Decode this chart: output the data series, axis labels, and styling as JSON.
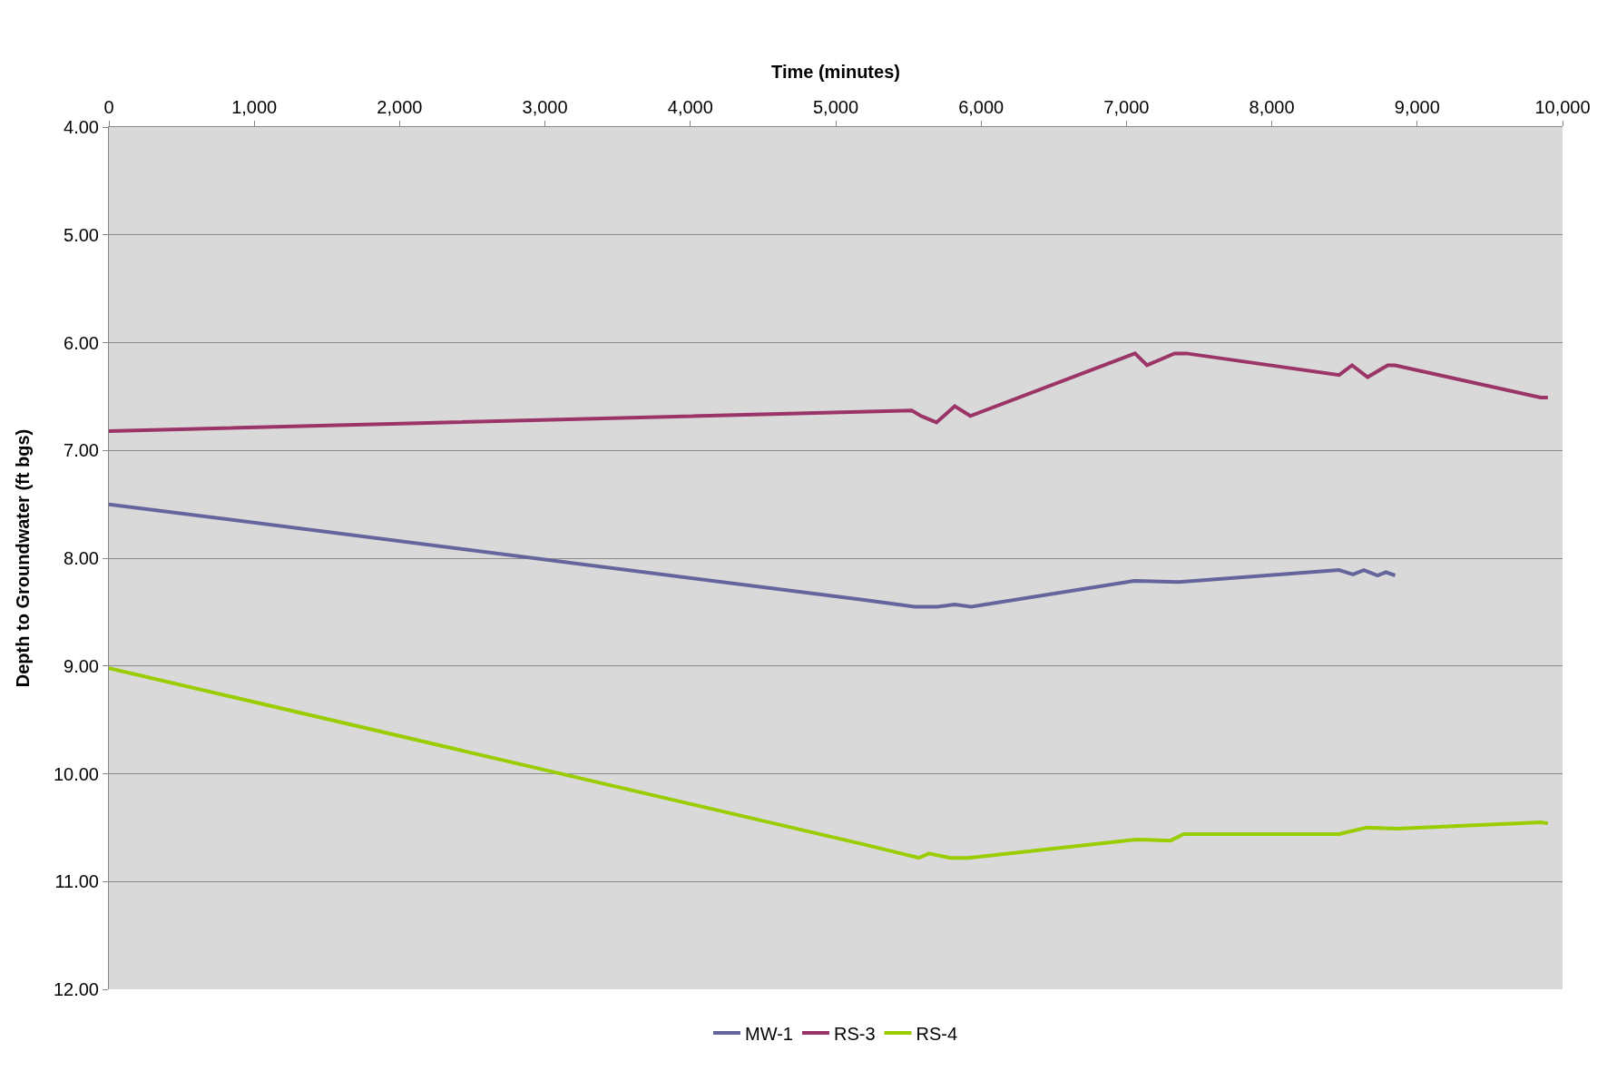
{
  "chart_data": {
    "type": "line",
    "xlabel": "Time (minutes)",
    "ylabel": "Depth to Groundwater (ft bgs)",
    "xlim": [
      0,
      10000
    ],
    "xticks": [
      0,
      {
        "value": 1000,
        "label": "1,000"
      },
      {
        "value": 2000,
        "label": "2,000"
      },
      {
        "value": 3000,
        "label": "3,000"
      },
      {
        "value": 4000,
        "label": "4,000"
      },
      {
        "value": 5000,
        "label": "5,000"
      },
      {
        "value": 6000,
        "label": "6,000"
      },
      {
        "value": 7000,
        "label": "7,000"
      },
      {
        "value": 8000,
        "label": "8,000"
      },
      {
        "value": 9000,
        "label": "9,000"
      },
      {
        "value": 10000,
        "label": "10,000"
      }
    ],
    "ylim": [
      12,
      4
    ],
    "yticks": [
      {
        "value": 4,
        "label": "4.00"
      },
      {
        "value": 5,
        "label": "5.00"
      },
      {
        "value": 6,
        "label": "6.00"
      },
      {
        "value": 7,
        "label": "7.00"
      },
      {
        "value": 8,
        "label": "8.00"
      },
      {
        "value": 9,
        "label": "9.00"
      },
      {
        "value": 10,
        "label": "10.00"
      },
      {
        "value": 11,
        "label": "11.00"
      },
      {
        "value": 12,
        "label": "12.00"
      }
    ],
    "grid": "y",
    "legend": "bottom",
    "marker": "none",
    "line_style": "solid",
    "series": [
      {
        "name": "MW-1",
        "color": "#65649c",
        "x": [
          0,
          5208,
          5543,
          5700,
          5818,
          5932,
          7053,
          7361,
          8463,
          8558,
          8633,
          8728,
          8785,
          8848
        ],
        "values": [
          7.5,
          8.39,
          8.45,
          8.45,
          8.43,
          8.45,
          8.21,
          8.22,
          8.11,
          8.15,
          8.11,
          8.16,
          8.13,
          8.16
        ]
      },
      {
        "name": "RS-3",
        "color": "#9b3467",
        "x": [
          0,
          5523,
          5586,
          5693,
          5819,
          5926,
          7059,
          7141,
          7330,
          7412,
          8463,
          8552,
          8659,
          8797,
          8848,
          9849,
          9899
        ],
        "values": [
          6.82,
          6.63,
          6.68,
          6.74,
          6.59,
          6.68,
          6.1,
          6.21,
          6.1,
          6.1,
          6.3,
          6.21,
          6.32,
          6.21,
          6.21,
          6.51,
          6.51
        ]
      },
      {
        "name": "RS-4",
        "color": "#9acd00",
        "x": [
          0,
          5208,
          5573,
          5642,
          5787,
          5913,
          7066,
          7305,
          7393,
          8463,
          8652,
          8860,
          9849,
          9899
        ],
        "values": [
          9.02,
          10.66,
          10.78,
          10.74,
          10.78,
          10.78,
          10.61,
          10.62,
          10.56,
          10.56,
          10.5,
          10.51,
          10.45,
          10.46
        ]
      }
    ]
  }
}
